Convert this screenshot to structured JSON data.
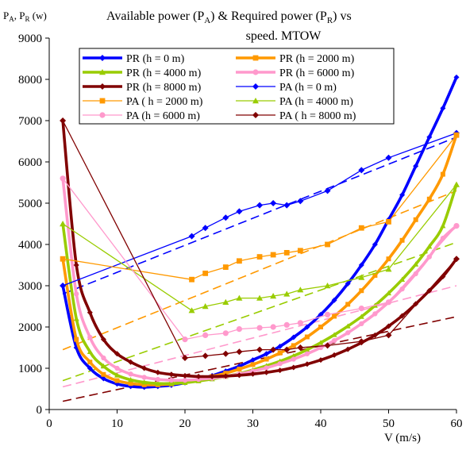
{
  "chart_data": {
    "type": "line",
    "title_line1": "Available power (P",
    "title_sub1": "A",
    "title_mid": ") & Required power (P",
    "title_sub2": "R",
    "title_end": ") vs",
    "title_line2": "speed. MTOW",
    "ylabel_p1": "P",
    "ylabel_s1": "A",
    "ylabel_p2": ", P",
    "ylabel_s2": "R",
    "ylabel_p3": " (w)",
    "xlabel": "V (m/s)",
    "xlim": [
      0,
      60
    ],
    "ylim": [
      0,
      9000
    ],
    "xticks": [
      "0",
      "10",
      "20",
      "30",
      "40",
      "50",
      "60"
    ],
    "yticks": [
      "0",
      "1000",
      "2000",
      "3000",
      "4000",
      "5000",
      "6000",
      "7000",
      "8000",
      "9000"
    ],
    "grid": false,
    "legend_position": "top",
    "series": [
      {
        "name": "PR (h = 0 m)",
        "color": "#0000FF",
        "marker": "diamond",
        "style": "thick",
        "x": [
          2,
          4,
          6,
          8,
          10,
          12,
          14,
          16,
          18,
          20,
          22,
          24,
          26,
          28,
          30,
          32,
          34,
          36,
          38,
          40,
          42,
          44,
          46,
          48,
          50,
          52,
          54,
          56,
          58,
          60
        ],
        "y": [
          3000,
          1500,
          1000,
          750,
          620,
          560,
          540,
          560,
          590,
          650,
          730,
          820,
          930,
          1050,
          1200,
          1350,
          1530,
          1750,
          2000,
          2300,
          2650,
          3050,
          3500,
          4000,
          4600,
          5200,
          5900,
          6600,
          7300,
          8050
        ]
      },
      {
        "name": "PR (h = 2000 m)",
        "color": "#FF9900",
        "marker": "square",
        "style": "thick",
        "x": [
          2,
          4,
          6,
          8,
          10,
          12,
          14,
          16,
          18,
          20,
          22,
          24,
          26,
          28,
          30,
          32,
          34,
          36,
          38,
          40,
          42,
          44,
          46,
          48,
          50,
          52,
          54,
          56,
          58,
          60
        ],
        "y": [
          3650,
          1700,
          1150,
          850,
          700,
          630,
          600,
          600,
          620,
          660,
          720,
          800,
          880,
          980,
          1090,
          1220,
          1370,
          1550,
          1760,
          2000,
          2260,
          2550,
          2880,
          3250,
          3650,
          4100,
          4600,
          5100,
          5700,
          6650
        ]
      },
      {
        "name": "PR (h = 4000 m)",
        "color": "#99CC00",
        "marker": "triangle",
        "style": "thick",
        "x": [
          2,
          4,
          6,
          8,
          10,
          12,
          14,
          16,
          18,
          20,
          22,
          24,
          26,
          28,
          30,
          32,
          34,
          36,
          38,
          40,
          42,
          44,
          46,
          48,
          50,
          52,
          54,
          56,
          58,
          60
        ],
        "y": [
          4500,
          2200,
          1400,
          1050,
          830,
          720,
          660,
          630,
          630,
          650,
          690,
          740,
          800,
          870,
          960,
          1060,
          1170,
          1300,
          1450,
          1620,
          1810,
          2020,
          2250,
          2520,
          2820,
          3150,
          3520,
          3950,
          4450,
          5450
        ]
      },
      {
        "name": "PR (h = 6000 m)",
        "color": "#FF99CC",
        "marker": "circle",
        "style": "thick",
        "x": [
          2,
          4,
          6,
          8,
          10,
          12,
          14,
          16,
          18,
          20,
          22,
          24,
          26,
          28,
          30,
          32,
          34,
          36,
          38,
          40,
          42,
          44,
          46,
          48,
          50,
          52,
          54,
          56,
          58,
          60
        ],
        "y": [
          5600,
          2800,
          1750,
          1250,
          1000,
          860,
          780,
          730,
          710,
          710,
          730,
          760,
          800,
          860,
          930,
          1010,
          1110,
          1220,
          1350,
          1500,
          1670,
          1860,
          2080,
          2320,
          2600,
          2920,
          3290,
          3700,
          4150,
          4450
        ]
      },
      {
        "name": "PR (h = 8000 m)",
        "color": "#800000",
        "marker": "diamond",
        "style": "thick",
        "x": [
          2,
          4,
          6,
          8,
          10,
          12,
          14,
          16,
          18,
          20,
          22,
          24,
          26,
          28,
          30,
          32,
          34,
          36,
          38,
          40,
          42,
          44,
          46,
          48,
          50,
          52,
          54,
          56,
          58,
          60
        ],
        "y": [
          7000,
          3500,
          2350,
          1700,
          1350,
          1150,
          1000,
          900,
          850,
          820,
          800,
          800,
          810,
          830,
          860,
          900,
          950,
          1020,
          1100,
          1200,
          1320,
          1460,
          1620,
          1800,
          2020,
          2270,
          2560,
          2880,
          3220,
          3650
        ]
      },
      {
        "name": "PA (h = 0 m)",
        "color": "#0000FF",
        "marker": "diamond",
        "style": "thin",
        "x": [
          2,
          21,
          23,
          26,
          28,
          31,
          33,
          35,
          37,
          41,
          46,
          50,
          60
        ],
        "y": [
          3000,
          4200,
          4400,
          4650,
          4800,
          4950,
          5000,
          4950,
          5050,
          5300,
          5800,
          6100,
          6700
        ]
      },
      {
        "name": "PA ( h = 2000 m)",
        "color": "#FF9900",
        "marker": "square",
        "style": "thin",
        "x": [
          2,
          21,
          23,
          26,
          28,
          31,
          33,
          35,
          37,
          41,
          46,
          50,
          60
        ],
        "y": [
          3650,
          3150,
          3300,
          3450,
          3600,
          3700,
          3750,
          3800,
          3850,
          4000,
          4400,
          4550,
          6650
        ]
      },
      {
        "name": "PA (h = 4000 m)",
        "color": "#99CC00",
        "marker": "triangle",
        "style": "thin",
        "x": [
          2,
          21,
          23,
          26,
          28,
          31,
          33,
          35,
          37,
          41,
          46,
          50,
          60
        ],
        "y": [
          4500,
          2400,
          2500,
          2600,
          2700,
          2700,
          2750,
          2800,
          2900,
          3000,
          3200,
          3400,
          5450
        ]
      },
      {
        "name": "PA (h = 6000 m)",
        "color": "#FF99CC",
        "marker": "circle",
        "style": "thin",
        "x": [
          2,
          20,
          23,
          26,
          28,
          31,
          33,
          35,
          37,
          41,
          46,
          50,
          60
        ],
        "y": [
          5600,
          1700,
          1800,
          1850,
          1950,
          1980,
          2000,
          2050,
          2100,
          2300,
          2450,
          2600,
          4450
        ]
      },
      {
        "name": "PA ( h = 8000 m)",
        "color": "#800000",
        "marker": "diamond",
        "style": "thin",
        "x": [
          2,
          20,
          23,
          26,
          28,
          31,
          33,
          35,
          37,
          41,
          46,
          50,
          60
        ],
        "y": [
          7000,
          1250,
          1300,
          1350,
          1400,
          1450,
          1450,
          1450,
          1500,
          1550,
          1650,
          1800,
          3650
        ]
      }
    ],
    "trendlines": [
      {
        "color": "#0000FF",
        "x": [
          2,
          60
        ],
        "y": [
          2800,
          6600
        ]
      },
      {
        "color": "#FF9900",
        "x": [
          2,
          60
        ],
        "y": [
          1450,
          5300
        ]
      },
      {
        "color": "#99CC00",
        "x": [
          2,
          60
        ],
        "y": [
          700,
          4050
        ]
      },
      {
        "color": "#FF99CC",
        "x": [
          2,
          60
        ],
        "y": [
          550,
          3000
        ]
      },
      {
        "color": "#800000",
        "x": [
          2,
          60
        ],
        "y": [
          200,
          2250
        ]
      }
    ]
  }
}
